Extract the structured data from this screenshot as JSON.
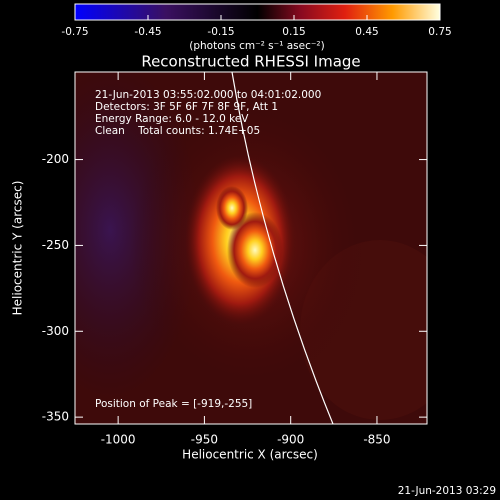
{
  "chart_data": {
    "type": "image",
    "title": "Reconstructed RHESSI Image",
    "colorbar": {
      "label": "(photons cm⁻² s⁻¹ asec⁻²)",
      "lim": [
        -0.75,
        0.75
      ],
      "ticks": [
        -0.75,
        -0.45,
        -0.15,
        0.15,
        0.45,
        0.75
      ]
    },
    "annotations": [
      "21-Jun-2013 03:55:02.000 to 04:01:02.000",
      "Detectors: 3F 5F 6F 7F 8F 9F, Att 1",
      "Energy Range: 6.0 - 12.0 keV",
      "Clean    Total counts: 1.74E+05"
    ],
    "peak_label": "Position of Peak = [-919,-255]",
    "xlabel": "Heliocentric X (arcsec)",
    "ylabel": "Heliocentric Y (arcsec)",
    "xlim": [
      -1025,
      -821
    ],
    "xticks": [
      -1000,
      -950,
      -900,
      -850
    ],
    "ylim": [
      -354,
      -149
    ],
    "yticks": [
      -200,
      -250,
      -300,
      -350
    ],
    "timestamp": "21-Jun-2013 03:29"
  }
}
